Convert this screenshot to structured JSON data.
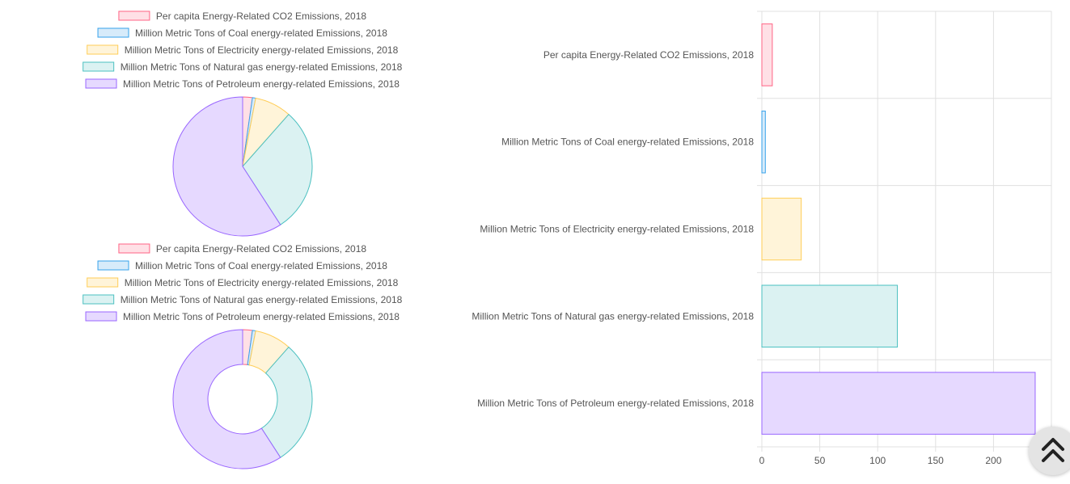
{
  "chart_data": [
    {
      "type": "pie",
      "legend_position": "top",
      "categories": [
        "Per capita Energy-Related CO2 Emissions, 2018",
        "Million Metric Tons of Coal energy-related Emissions, 2018",
        "Million Metric Tons of Electricity energy-related Emissions, 2018",
        "Million Metric Tons of Natural gas energy-related Emissions, 2018",
        "Million Metric Tons of Petroleum energy-related Emissions, 2018"
      ],
      "values": [
        9,
        3,
        34,
        117,
        236
      ],
      "fill_colors": [
        "#ffe0e6",
        "#d7ebfa",
        "#fff4d9",
        "#dbf2f2",
        "#e6d9ff"
      ],
      "border_colors": [
        "#ff6384",
        "#36a2eb",
        "#ffcd56",
        "#4bc0c0",
        "#9966ff"
      ]
    },
    {
      "type": "doughnut",
      "legend_position": "top",
      "categories": [
        "Per capita Energy-Related CO2 Emissions, 2018",
        "Million Metric Tons of Coal energy-related Emissions, 2018",
        "Million Metric Tons of Electricity energy-related Emissions, 2018",
        "Million Metric Tons of Natural gas energy-related Emissions, 2018",
        "Million Metric Tons of Petroleum energy-related Emissions, 2018"
      ],
      "values": [
        9,
        3,
        34,
        117,
        236
      ],
      "fill_colors": [
        "#ffe0e6",
        "#d7ebfa",
        "#fff4d9",
        "#dbf2f2",
        "#e6d9ff"
      ],
      "border_colors": [
        "#ff6384",
        "#36a2eb",
        "#ffcd56",
        "#4bc0c0",
        "#9966ff"
      ]
    },
    {
      "type": "bar",
      "orientation": "horizontal",
      "categories": [
        "Per capita Energy-Related CO2 Emissions, 2018",
        "Million Metric Tons of Coal energy-related Emissions, 2018",
        "Million Metric Tons of Electricity energy-related Emissions, 2018",
        "Million Metric Tons of Natural gas energy-related Emissions, 2018",
        "Million Metric Tons of Petroleum energy-related Emissions, 2018"
      ],
      "values": [
        9,
        3,
        34,
        117,
        236
      ],
      "xlim": [
        0,
        250
      ],
      "x_ticks": [
        0,
        50,
        100,
        150,
        200
      ],
      "grid": true,
      "fill_colors": [
        "#ffe0e6",
        "#d7ebfa",
        "#fff4d9",
        "#dbf2f2",
        "#e6d9ff"
      ],
      "border_colors": [
        "#ff6384",
        "#36a2eb",
        "#ffcd56",
        "#4bc0c0",
        "#9966ff"
      ]
    }
  ],
  "scroll_top_button": {
    "icon": "double-chevron-up-icon"
  }
}
